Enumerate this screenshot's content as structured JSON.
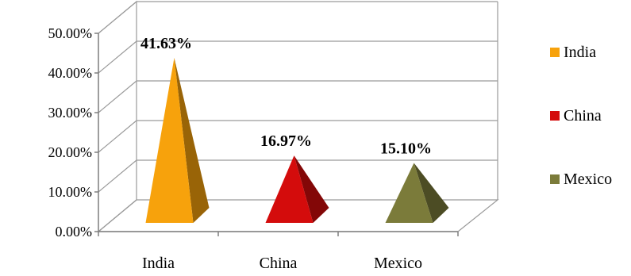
{
  "chart_data": {
    "type": "bar",
    "style": "3d-pyramid",
    "categories": [
      "India",
      "China",
      "Mexico"
    ],
    "values": [
      41.63,
      16.97,
      15.1
    ],
    "data_labels": [
      "41.63%",
      "16.97%",
      "15.10%"
    ],
    "colors": [
      "#F7A20C",
      "#D40C0C",
      "#7B7B3A"
    ],
    "yticks": [
      "0.00%",
      "10.00%",
      "20.00%",
      "30.00%",
      "40.00%",
      "50.00%"
    ],
    "ylim": [
      0,
      50
    ],
    "grid": true,
    "legend": {
      "position": "right",
      "entries": [
        {
          "label": "India",
          "color": "#F7A20C"
        },
        {
          "label": "China",
          "color": "#D40C0C"
        },
        {
          "label": "Mexico",
          "color": "#7B7B3A"
        }
      ]
    }
  }
}
